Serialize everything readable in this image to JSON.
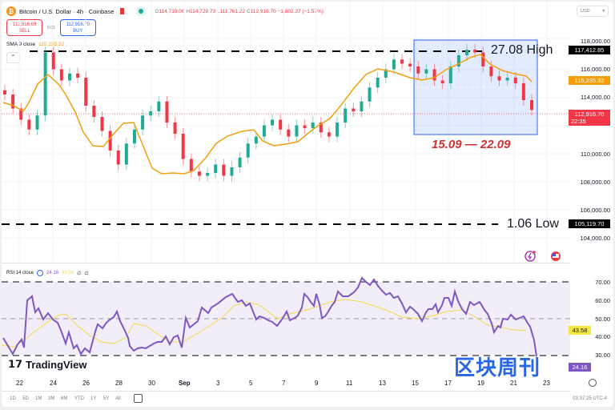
{
  "header": {
    "symbol": "Bitcoin / U.S. Dollar · 4h · Coinbase",
    "ohlc": {
      "o_label": "O",
      "o": "114,719.06",
      "h_label": "H",
      "h": "114,729.73",
      "l_label": "L",
      "l": "111,761.22",
      "c_label": "C",
      "c": "112,916.70",
      "change": "−1,802.37 (−1.57%)"
    },
    "currency": "USD"
  },
  "trade": {
    "sell_price": "112,916.69",
    "sell_label": "SELL",
    "spread": "0.01",
    "buy_price": "112,916.70",
    "buy_label": "BUY"
  },
  "indicators": {
    "sma_label": "SMA 9 close",
    "sma_value": "115,235.32",
    "rsi_label": "RSI 14 close",
    "rsi_value": "24.16",
    "rsi_ma_value": "43.58",
    "rsi_extra1": "∅",
    "rsi_extra2": "∅"
  },
  "annotations": {
    "high_text": "27.08  High",
    "low_text": "1.06 Low",
    "range_text": "15.09 — 22.09"
  },
  "price_axis": {
    "ticks": [
      "118,000.00",
      "116,000.00",
      "114,000.00",
      "112,000.00",
      "110,000.00",
      "108,000.00",
      "106,000.00",
      "104,000.00"
    ],
    "high_tag": "117,412.85",
    "sma_tag": "115,235.32",
    "last_tag": "112,916.70",
    "countdown": "22:35",
    "low_tag": "105,119.70"
  },
  "rsi_axis": {
    "ticks": [
      "70.00",
      "60.00",
      "50.00",
      "40.00",
      "30.00"
    ],
    "ma_tag": "43.58",
    "rsi_tag": "24.16"
  },
  "time_axis": {
    "ticks": [
      "22",
      "24",
      "26",
      "28",
      "30",
      "Sep",
      "3",
      "5",
      "7",
      "9",
      "11",
      "13",
      "15",
      "17",
      "19",
      "21",
      "23"
    ]
  },
  "timeframes": [
    "1D",
    "5D",
    "1M",
    "3M",
    "6M",
    "YTD",
    "1Y",
    "5Y",
    "All"
  ],
  "footer": {
    "clock": "03:37:25 UTC-4",
    "brand": "TradingView"
  },
  "watermark": "区块周刊",
  "colors": {
    "up": "#22ab94",
    "down": "#f23645",
    "sma": "#f59e0b",
    "rsi": "#7e57c2",
    "rsi_ma": "#f5d94a",
    "box": "#2962ff"
  },
  "chart_data": [
    {
      "type": "candlestick",
      "title": "Bitcoin / U.S. Dollar · 4h · Coinbase",
      "ylim": [
        103000,
        119000
      ],
      "x_range": [
        "Aug 21",
        "Sep 23"
      ],
      "approx_closes": [
        114000,
        113000,
        112200,
        111500,
        112500,
        117000,
        115800,
        115000,
        115500,
        115200,
        113200,
        112400,
        111400,
        110000,
        109000,
        110500,
        111500,
        112500,
        112800,
        113500,
        112000,
        111200,
        109400,
        108500,
        108200,
        108400,
        109000,
        108200,
        108800,
        109500,
        110500,
        111000,
        111800,
        112200,
        111500,
        111000,
        111800,
        111600,
        112000,
        111300,
        111000,
        112000,
        113000,
        112800,
        113500,
        114500,
        115200,
        115800,
        116500,
        116200,
        116000,
        115500,
        115800,
        115000,
        114800,
        116000,
        116800,
        117200,
        117000,
        116000,
        115300,
        115000,
        115200,
        114800,
        113600,
        112900
      ],
      "sma9_last": 115235.32,
      "last": 112916.7,
      "high_line": 117412.85,
      "low_line": 105119.7,
      "highlight_range": [
        "15.09",
        "22.09"
      ]
    },
    {
      "type": "line",
      "title": "RSI 14 close",
      "ylim": [
        20,
        75
      ],
      "bands": [
        30,
        50,
        70
      ],
      "series": [
        {
          "name": "RSI",
          "last": 24.16
        },
        {
          "name": "RSI-MA",
          "last": 43.58
        }
      ]
    }
  ]
}
